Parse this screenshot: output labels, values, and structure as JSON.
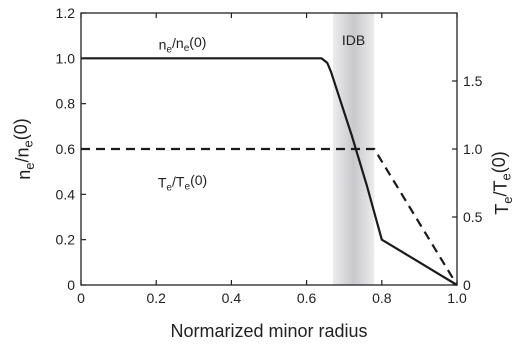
{
  "chart_data": {
    "type": "line",
    "xlabel": "Normarized minor radius",
    "ylabel": {
      "main": "n",
      "sub": "e",
      "mid": "/n",
      "sub2": "e",
      "end": "(0)"
    },
    "y2label": {
      "main": "T",
      "sub": "e",
      "mid": "/T",
      "sub2": "e",
      "end": "(0)"
    },
    "xlim": [
      0,
      1.0
    ],
    "ylim": [
      0,
      1.2
    ],
    "y2lim": [
      0,
      2.0
    ],
    "xticks": [
      "0",
      "0.2",
      "0.4",
      "0.6",
      "0.8",
      "1.0"
    ],
    "xtick_values": [
      0,
      0.2,
      0.4,
      0.6,
      0.8,
      1.0
    ],
    "yticks": [
      "0",
      "0.2",
      "0.4",
      "0.6",
      "0.8",
      "1.0",
      "1.2"
    ],
    "ytick_values": [
      0,
      0.2,
      0.4,
      0.6,
      0.8,
      1.0,
      1.2
    ],
    "y2ticks": [
      "0",
      "0.5",
      "1.0",
      "1.5"
    ],
    "y2tick_values": [
      0,
      0.5,
      1.0,
      1.5
    ],
    "grid": false,
    "band": {
      "label": "IDB",
      "x0": 0.67,
      "x1": 0.78,
      "color": "#c8c8cc"
    },
    "series": [
      {
        "label": {
          "main": "n",
          "sub": "e",
          "mid": "/n",
          "sub2": "e",
          "end": "(0)"
        },
        "axis": "left",
        "style": "solid",
        "color": "#1a1a1a",
        "label_at": [
          0.27,
          1.04
        ],
        "x": [
          0,
          0.64,
          0.655,
          0.665,
          0.72,
          0.76,
          0.8,
          0.84,
          0.9,
          0.95,
          1.0
        ],
        "y": [
          1.0,
          1.0,
          0.98,
          0.94,
          0.66,
          0.44,
          0.2,
          0.16,
          0.1,
          0.05,
          0.0
        ]
      },
      {
        "label": {
          "main": "T",
          "sub": "e",
          "mid": "/T",
          "sub2": "e",
          "end": "(0)"
        },
        "axis": "right",
        "style": "dashed",
        "color": "#1a1a1a",
        "label_at": [
          0.27,
          0.43
        ],
        "x": [
          0,
          0.78,
          1.0
        ],
        "y": [
          1.0,
          1.0,
          0.0
        ]
      }
    ]
  }
}
